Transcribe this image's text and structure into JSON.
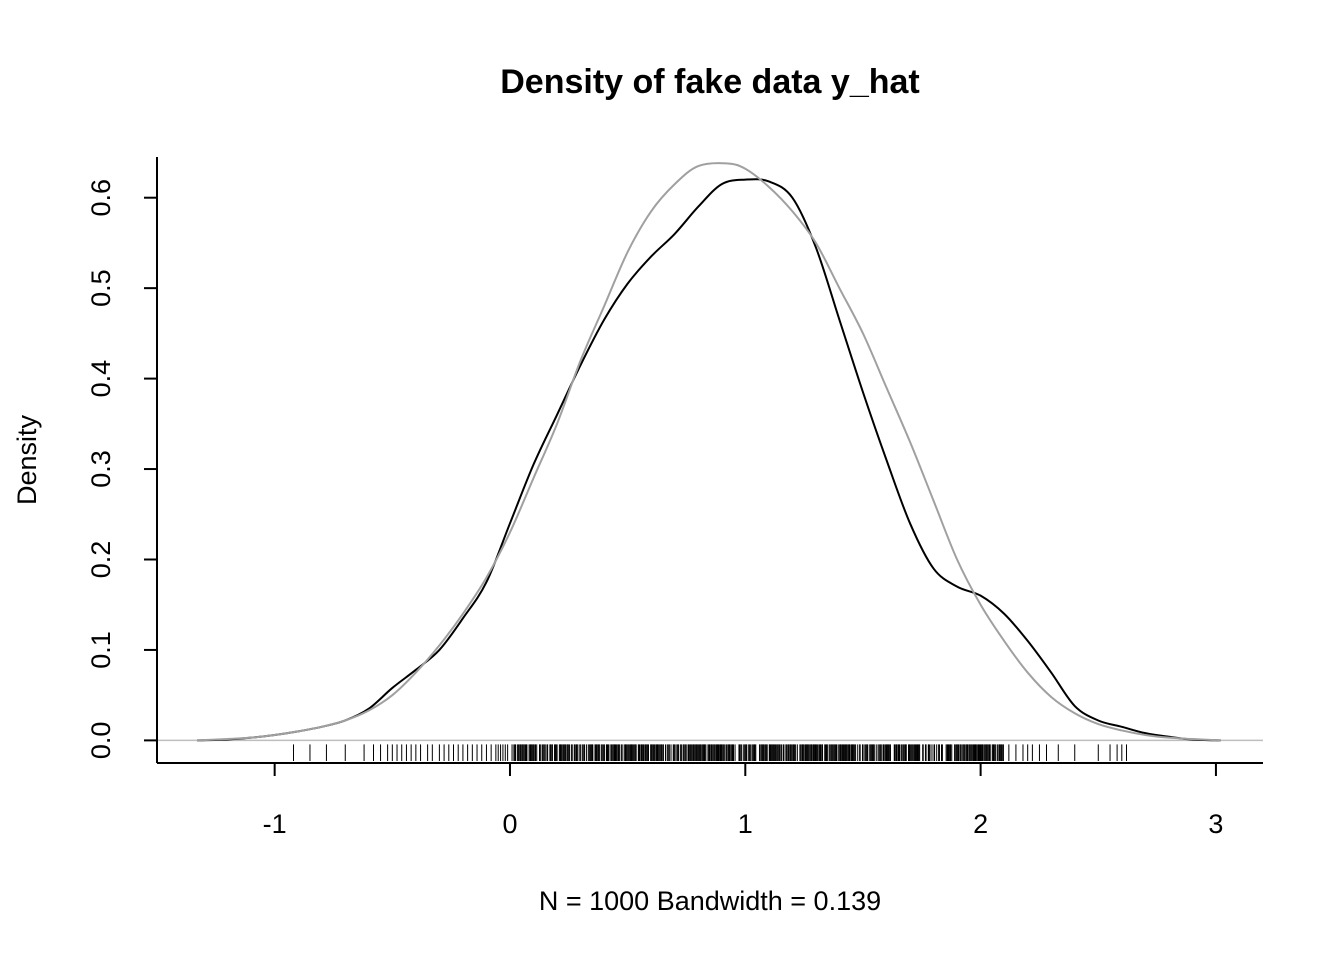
{
  "chart_data": {
    "type": "line",
    "title": "Density of fake data y_hat",
    "xlabel": "N = 1000   Bandwidth = 0.139",
    "ylabel": "Density",
    "xlim": [
      -1.5,
      3.2
    ],
    "ylim": [
      -0.025,
      0.645
    ],
    "x_ticks": [
      -1,
      0,
      1,
      2,
      3
    ],
    "x_tick_labels": [
      "-1",
      "0",
      "1",
      "2",
      "3"
    ],
    "y_ticks": [
      0.0,
      0.1,
      0.2,
      0.3,
      0.4,
      0.5,
      0.6
    ],
    "y_tick_labels": [
      "0.0",
      "0.1",
      "0.2",
      "0.3",
      "0.4",
      "0.5",
      "0.6"
    ],
    "grid": false,
    "baseline_color": "#bebebe",
    "series": [
      {
        "color": "#000000",
        "x": [
          -1.33,
          -1.2,
          -1.1,
          -1.0,
          -0.9,
          -0.8,
          -0.7,
          -0.6,
          -0.5,
          -0.4,
          -0.3,
          -0.2,
          -0.1,
          0.0,
          0.1,
          0.2,
          0.3,
          0.4,
          0.5,
          0.6,
          0.7,
          0.8,
          0.9,
          1.0,
          1.1,
          1.2,
          1.3,
          1.4,
          1.5,
          1.6,
          1.7,
          1.8,
          1.9,
          2.0,
          2.1,
          2.2,
          2.3,
          2.4,
          2.5,
          2.6,
          2.7,
          2.8,
          2.9,
          3.02
        ],
        "y": [
          0.0,
          0.001,
          0.003,
          0.006,
          0.01,
          0.015,
          0.022,
          0.035,
          0.058,
          0.078,
          0.1,
          0.135,
          0.175,
          0.24,
          0.305,
          0.36,
          0.415,
          0.465,
          0.505,
          0.535,
          0.56,
          0.59,
          0.615,
          0.62,
          0.618,
          0.6,
          0.545,
          0.465,
          0.385,
          0.31,
          0.24,
          0.19,
          0.17,
          0.16,
          0.14,
          0.11,
          0.075,
          0.038,
          0.022,
          0.015,
          0.008,
          0.004,
          0.001,
          0.0
        ]
      },
      {
        "color": "#a0a0a0",
        "x": [
          -1.33,
          -1.2,
          -1.1,
          -1.0,
          -0.9,
          -0.8,
          -0.7,
          -0.6,
          -0.5,
          -0.4,
          -0.3,
          -0.2,
          -0.1,
          0.0,
          0.1,
          0.2,
          0.3,
          0.4,
          0.5,
          0.6,
          0.7,
          0.8,
          0.92,
          1.0,
          1.1,
          1.2,
          1.3,
          1.4,
          1.5,
          1.6,
          1.7,
          1.8,
          1.9,
          2.0,
          2.1,
          2.2,
          2.3,
          2.4,
          2.5,
          2.6,
          2.7,
          2.8,
          2.9,
          3.02
        ],
        "y": [
          0.0,
          0.0015,
          0.003,
          0.006,
          0.01,
          0.015,
          0.022,
          0.033,
          0.05,
          0.075,
          0.105,
          0.14,
          0.18,
          0.23,
          0.29,
          0.35,
          0.42,
          0.48,
          0.54,
          0.585,
          0.615,
          0.635,
          0.638,
          0.632,
          0.612,
          0.585,
          0.55,
          0.5,
          0.45,
          0.39,
          0.33,
          0.265,
          0.2,
          0.15,
          0.11,
          0.075,
          0.048,
          0.03,
          0.018,
          0.011,
          0.006,
          0.003,
          0.0015,
          0.0
        ]
      }
    ],
    "rug": [
      -0.92,
      -0.85,
      -0.78,
      -0.7,
      -0.62,
      -0.58,
      -0.55,
      -0.52,
      -0.5,
      -0.48,
      -0.46,
      -0.44,
      -0.42,
      -0.4,
      -0.38,
      -0.35,
      -0.33,
      -0.3,
      -0.28,
      -0.26,
      -0.24,
      -0.22,
      -0.2,
      -0.18,
      -0.16,
      -0.14,
      -0.12,
      -0.1,
      -0.08,
      -0.06,
      -0.05,
      -0.04,
      -0.03,
      -0.02,
      -0.01,
      2.12,
      2.15,
      2.18,
      2.2,
      2.22,
      2.25,
      2.28,
      2.33,
      2.4,
      2.5,
      2.55,
      2.58,
      2.6,
      2.62
    ]
  }
}
